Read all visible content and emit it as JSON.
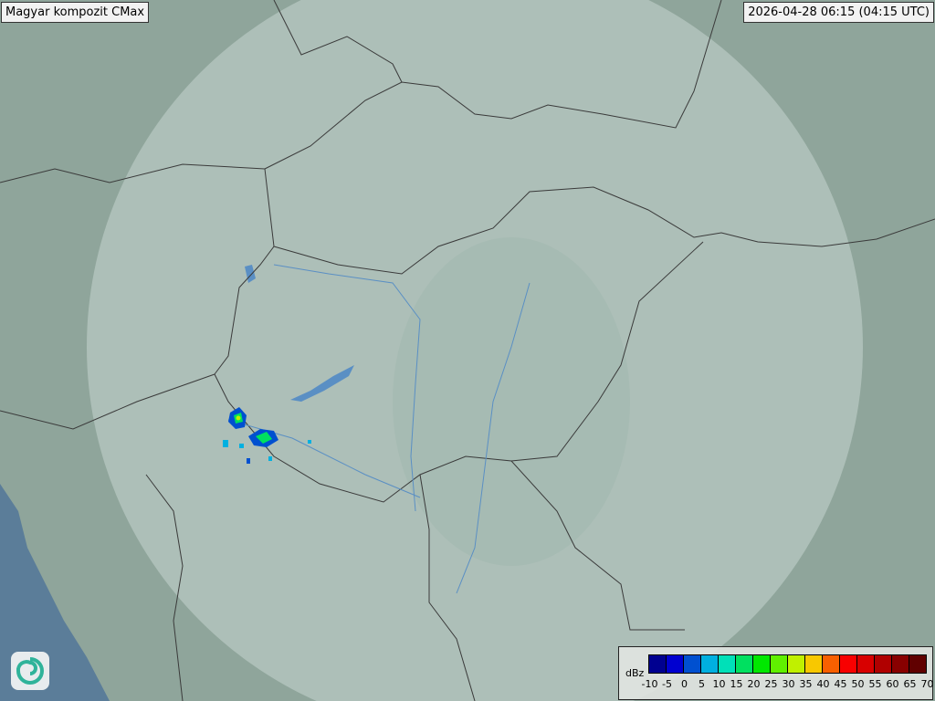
{
  "header": {
    "title": "Magyar kompozit  CMax",
    "timestamp": "2026-04-28 06:15 (04:15 UTC)"
  },
  "legend": {
    "unit": "dBz",
    "ticks": [
      "-10",
      "-5",
      "0",
      "5",
      "10",
      "15",
      "20",
      "25",
      "30",
      "35",
      "40",
      "45",
      "50",
      "55",
      "60",
      "65",
      "70"
    ],
    "colors": [
      "#000090",
      "#0000d0",
      "#0050d0",
      "#00b0e0",
      "#00e0b8",
      "#00e060",
      "#00e800",
      "#60f000",
      "#c0f000",
      "#f8c800",
      "#f86000",
      "#f80000",
      "#d80000",
      "#b00000",
      "#880000",
      "#600000"
    ]
  },
  "logo": {
    "icon": "swirl-logo-icon"
  },
  "map": {
    "land_color": "#8fa59b",
    "coverage_color": "#b9cbc3",
    "sea_color": "#5b7d99",
    "water_color": "#5a8fc4"
  }
}
